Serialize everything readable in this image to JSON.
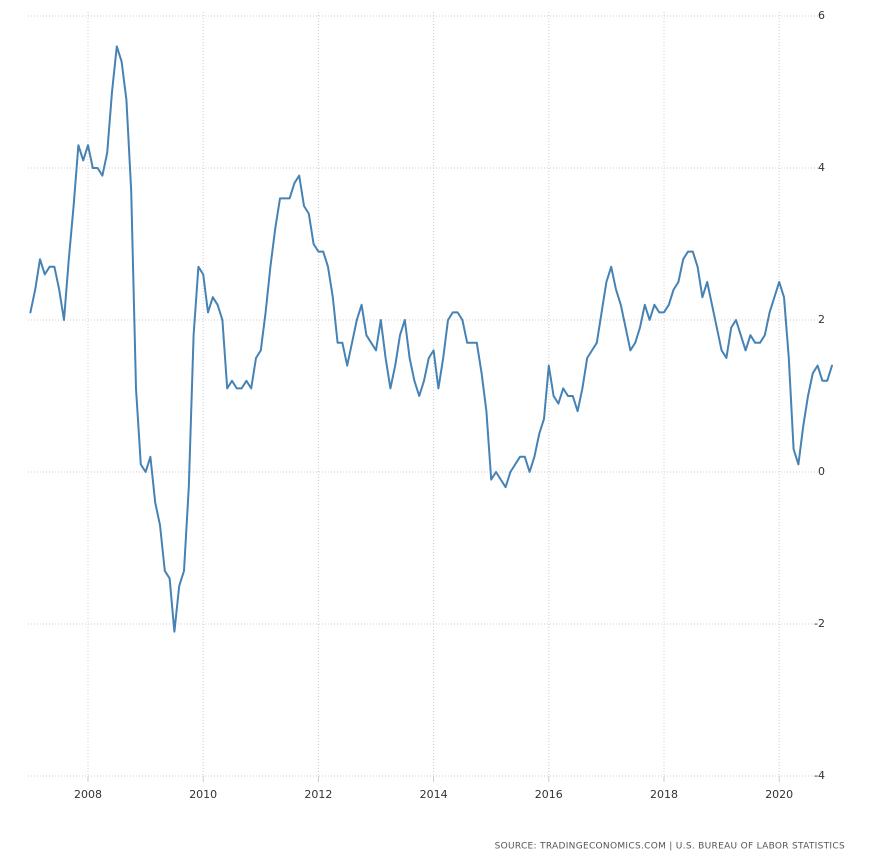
{
  "chart_data": {
    "type": "line",
    "source": "SOURCE: TRADINGECONOMICS.COM | U.S. BUREAU OF LABOR STATISTICS",
    "x": [
      "2007-01",
      "2007-02",
      "2007-03",
      "2007-04",
      "2007-05",
      "2007-06",
      "2007-07",
      "2007-08",
      "2007-09",
      "2007-10",
      "2007-11",
      "2007-12",
      "2008-01",
      "2008-02",
      "2008-03",
      "2008-04",
      "2008-05",
      "2008-06",
      "2008-07",
      "2008-08",
      "2008-09",
      "2008-10",
      "2008-11",
      "2008-12",
      "2009-01",
      "2009-02",
      "2009-03",
      "2009-04",
      "2009-05",
      "2009-06",
      "2009-07",
      "2009-08",
      "2009-09",
      "2009-10",
      "2009-11",
      "2009-12",
      "2010-01",
      "2010-02",
      "2010-03",
      "2010-04",
      "2010-05",
      "2010-06",
      "2010-07",
      "2010-08",
      "2010-09",
      "2010-10",
      "2010-11",
      "2010-12",
      "2011-01",
      "2011-02",
      "2011-03",
      "2011-04",
      "2011-05",
      "2011-06",
      "2011-07",
      "2011-08",
      "2011-09",
      "2011-10",
      "2011-11",
      "2011-12",
      "2012-01",
      "2012-02",
      "2012-03",
      "2012-04",
      "2012-05",
      "2012-06",
      "2012-07",
      "2012-08",
      "2012-09",
      "2012-10",
      "2012-11",
      "2012-12",
      "2013-01",
      "2013-02",
      "2013-03",
      "2013-04",
      "2013-05",
      "2013-06",
      "2013-07",
      "2013-08",
      "2013-09",
      "2013-10",
      "2013-11",
      "2013-12",
      "2014-01",
      "2014-02",
      "2014-03",
      "2014-04",
      "2014-05",
      "2014-06",
      "2014-07",
      "2014-08",
      "2014-09",
      "2014-10",
      "2014-11",
      "2014-12",
      "2015-01",
      "2015-02",
      "2015-03",
      "2015-04",
      "2015-05",
      "2015-06",
      "2015-07",
      "2015-08",
      "2015-09",
      "2015-10",
      "2015-11",
      "2015-12",
      "2016-01",
      "2016-02",
      "2016-03",
      "2016-04",
      "2016-05",
      "2016-06",
      "2016-07",
      "2016-08",
      "2016-09",
      "2016-10",
      "2016-11",
      "2016-12",
      "2017-01",
      "2017-02",
      "2017-03",
      "2017-04",
      "2017-05",
      "2017-06",
      "2017-07",
      "2017-08",
      "2017-09",
      "2017-10",
      "2017-11",
      "2017-12",
      "2018-01",
      "2018-02",
      "2018-03",
      "2018-04",
      "2018-05",
      "2018-06",
      "2018-07",
      "2018-08",
      "2018-09",
      "2018-10",
      "2018-11",
      "2018-12",
      "2019-01",
      "2019-02",
      "2019-03",
      "2019-04",
      "2019-05",
      "2019-06",
      "2019-07",
      "2019-08",
      "2019-09",
      "2019-10",
      "2019-11",
      "2019-12",
      "2020-01",
      "2020-02",
      "2020-03",
      "2020-04",
      "2020-05",
      "2020-06",
      "2020-07",
      "2020-08",
      "2020-09",
      "2020-10",
      "2020-11",
      "2020-12"
    ],
    "series": [
      {
        "color": "#4682b4",
        "values": [
          2.1,
          2.4,
          2.8,
          2.6,
          2.7,
          2.7,
          2.4,
          2.0,
          2.8,
          3.5,
          4.3,
          4.1,
          4.3,
          4.0,
          4.0,
          3.9,
          4.2,
          5.0,
          5.6,
          5.4,
          4.9,
          3.7,
          1.1,
          0.1,
          0.0,
          0.2,
          -0.4,
          -0.7,
          -1.3,
          -1.4,
          -2.1,
          -1.5,
          -1.3,
          -0.2,
          1.8,
          2.7,
          2.6,
          2.1,
          2.3,
          2.2,
          2.0,
          1.1,
          1.2,
          1.1,
          1.1,
          1.2,
          1.1,
          1.5,
          1.6,
          2.1,
          2.7,
          3.2,
          3.6,
          3.6,
          3.6,
          3.8,
          3.9,
          3.5,
          3.4,
          3.0,
          2.9,
          2.9,
          2.7,
          2.3,
          1.7,
          1.7,
          1.4,
          1.7,
          2.0,
          2.2,
          1.8,
          1.7,
          1.6,
          2.0,
          1.5,
          1.1,
          1.4,
          1.8,
          2.0,
          1.5,
          1.2,
          1.0,
          1.2,
          1.5,
          1.6,
          1.1,
          1.5,
          2.0,
          2.1,
          2.1,
          2.0,
          1.7,
          1.7,
          1.7,
          1.3,
          0.8,
          -0.1,
          0.0,
          -0.1,
          -0.2,
          0.0,
          0.1,
          0.2,
          0.2,
          0.0,
          0.2,
          0.5,
          0.7,
          1.4,
          1.0,
          0.9,
          1.1,
          1.0,
          1.0,
          0.8,
          1.1,
          1.5,
          1.6,
          1.7,
          2.1,
          2.5,
          2.7,
          2.4,
          2.2,
          1.9,
          1.6,
          1.7,
          1.9,
          2.2,
          2.0,
          2.2,
          2.1,
          2.1,
          2.2,
          2.4,
          2.5,
          2.8,
          2.9,
          2.9,
          2.7,
          2.3,
          2.5,
          2.2,
          1.9,
          1.6,
          1.5,
          1.9,
          2.0,
          1.8,
          1.6,
          1.8,
          1.7,
          1.7,
          1.8,
          2.1,
          2.3,
          2.5,
          2.3,
          1.5,
          0.3,
          0.1,
          0.6,
          1.0,
          1.3,
          1.4,
          1.2,
          1.2,
          1.4
        ]
      }
    ],
    "xticks": [
      2008,
      2010,
      2012,
      2014,
      2016,
      2018,
      2020
    ],
    "ylim": [
      -4,
      6
    ],
    "yticks": [
      -4,
      -2,
      0,
      2,
      4,
      6
    ],
    "grid": true
  }
}
